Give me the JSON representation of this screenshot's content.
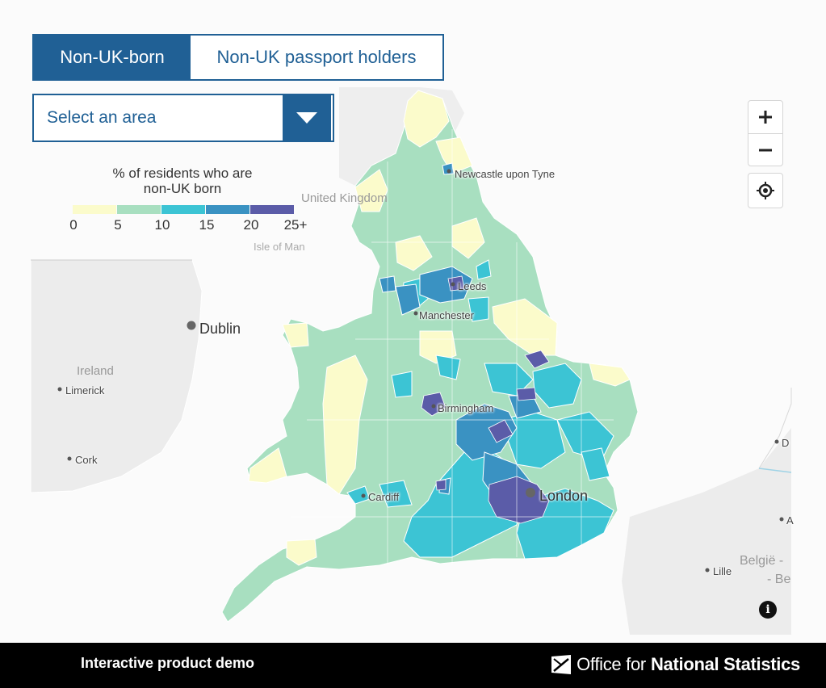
{
  "toggle": {
    "options": [
      {
        "label": "Non-UK-born",
        "active": true
      },
      {
        "label": "Non-UK passport holders",
        "active": false
      }
    ]
  },
  "area_select": {
    "placeholder": "Select an area"
  },
  "legend": {
    "title_line1": "% of residents who are",
    "title_line2": "non-UK born",
    "ticks": [
      "0",
      "5",
      "10",
      "15",
      "20",
      "25+"
    ],
    "colors": [
      "#fbfbcb",
      "#a8dfc0",
      "#3cc4d4",
      "#3a92c2",
      "#5b5ca8"
    ]
  },
  "map_labels": {
    "newcastle": "Newcastle upon Tyne",
    "united_kingdom": "United Kingdom",
    "isle_of_man": "Isle of Man",
    "leeds": "Leeds",
    "manchester": "Manchester",
    "dublin": "Dublin",
    "ireland": "Ireland",
    "limerick": "Limerick",
    "cork": "Cork",
    "birmingham": "Birmingham",
    "cardiff": "Cardiff",
    "london": "London",
    "belgie": "België -",
    "be": "- Be",
    "lille": "Lille",
    "d": "D",
    "a": "A"
  },
  "controls": {
    "zoom_in": "+",
    "zoom_out": "−",
    "info": "i"
  },
  "footer": {
    "demo_label": "Interactive product demo",
    "org_prefix": "Office for",
    "org_name": "National Statistics"
  }
}
